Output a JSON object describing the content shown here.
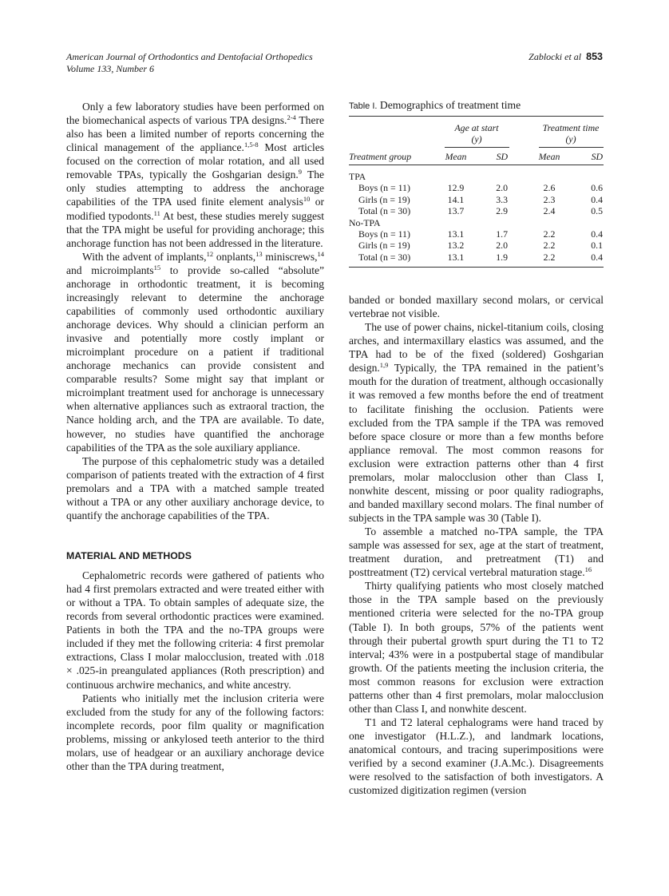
{
  "header": {
    "journal": "American Journal of Orthodontics and Dentofacial Orthopedics",
    "volume": "Volume 133, Number 6",
    "authors": "Zablocki et al",
    "page_number": "853"
  },
  "table": {
    "label": "Table I.",
    "title": "Demographics of treatment time",
    "group_headers": [
      {
        "line1": "Age at start",
        "line2": "(y)"
      },
      {
        "line1": "Treatment time",
        "line2": "(y)"
      }
    ],
    "columns": [
      "Treatment group",
      "Mean",
      "SD",
      "Mean",
      "SD"
    ],
    "rows": [
      {
        "group": "TPA",
        "cells": []
      },
      {
        "label": "Boys (n = 11)",
        "cells": [
          "12.9",
          "2.0",
          "2.6",
          "0.6"
        ]
      },
      {
        "label": "Girls (n = 19)",
        "cells": [
          "14.1",
          "3.3",
          "2.3",
          "0.4"
        ]
      },
      {
        "label": "Total (n = 30)",
        "cells": [
          "13.7",
          "2.9",
          "2.4",
          "0.5"
        ]
      },
      {
        "group": "No-TPA",
        "cells": []
      },
      {
        "label": "Boys (n = 11)",
        "cells": [
          "13.1",
          "1.7",
          "2.2",
          "0.4"
        ]
      },
      {
        "label": "Girls (n = 19)",
        "cells": [
          "13.2",
          "2.0",
          "2.2",
          "0.1"
        ]
      },
      {
        "label": "Total (n = 30)",
        "cells": [
          "13.1",
          "1.9",
          "2.2",
          "0.4"
        ]
      }
    ]
  },
  "left_column": [
    {
      "type": "p",
      "segments": [
        {
          "t": "Only a few laboratory studies have been performed on the biomechanical aspects of various TPA designs."
        },
        {
          "sup": "2-4"
        },
        {
          "t": " There also has been a limited number of reports concerning the clinical management of the appliance."
        },
        {
          "sup": "1,5-8"
        },
        {
          "t": " Most articles focused on the correction of molar rotation, and all used removable TPAs, typically the Goshgarian design."
        },
        {
          "sup": "9"
        },
        {
          "t": " The only studies attempting to address the anchorage capabilities of the TPA used finite element analysis"
        },
        {
          "sup": "10"
        },
        {
          "t": " or modified typodonts."
        },
        {
          "sup": "11"
        },
        {
          "t": " At best, these studies merely suggest that the TPA might be useful for providing anchorage; this anchorage function has not been addressed in the literature."
        }
      ]
    },
    {
      "type": "p",
      "segments": [
        {
          "t": "With the advent of implants,"
        },
        {
          "sup": "12"
        },
        {
          "t": " onplants,"
        },
        {
          "sup": "13"
        },
        {
          "t": " miniscrews,"
        },
        {
          "sup": "14"
        },
        {
          "t": " and microimplants"
        },
        {
          "sup": "15"
        },
        {
          "t": " to provide so-called “absolute” anchorage in orthodontic treatment, it is becoming increasingly relevant to determine the anchorage capabilities of commonly used orthodontic auxiliary anchorage devices. Why should a clinician perform an invasive and potentially more costly implant or microimplant procedure on a patient if traditional anchorage mechanics can provide consistent and comparable results? Some might say that implant or microimplant treatment used for anchorage is unnecessary when alternative appliances such as extraoral traction, the Nance holding arch, and the TPA are available. To date, however, no studies have quantified the anchorage capabilities of the TPA as the sole auxiliary appliance."
        }
      ]
    },
    {
      "type": "p",
      "segments": [
        {
          "t": "The purpose of this cephalometric study was a detailed comparison of patients treated with the extraction of 4 first premolars and a TPA with a matched sample treated without a TPA or any other auxiliary anchorage device, to quantify the anchorage capabilities of the TPA."
        }
      ]
    },
    {
      "type": "heading",
      "segments": [
        {
          "t": "MATERIAL AND METHODS"
        }
      ]
    },
    {
      "type": "p",
      "segments": [
        {
          "t": "Cephalometric records were gathered of patients who had 4 first premolars extracted and were treated either with or without a TPA. To obtain samples of adequate size, the records from several orthodontic practices were examined. Patients in both the TPA and the no-TPA groups were included if they met the following criteria: 4 first premolar extractions, Class I molar malocclusion, treated with .018 × .025-in preangulated appliances (Roth prescription) and continuous archwire mechanics, and white ancestry."
        }
      ]
    },
    {
      "type": "p",
      "segments": [
        {
          "t": "Patients who initially met the inclusion criteria were excluded from the study for any of the following factors: incomplete records, poor film quality or magnification problems, missing or ankylosed teeth anterior to the third molars, use of headgear or an auxiliary anchorage device other than the TPA during treatment,"
        }
      ]
    }
  ],
  "right_column": [
    {
      "type": "p-cont",
      "segments": [
        {
          "t": "banded or bonded maxillary second molars, or cervical vertebrae not visible."
        }
      ]
    },
    {
      "type": "p",
      "segments": [
        {
          "t": "The use of power chains, nickel-titanium coils, closing arches, and intermaxillary elastics was assumed, and the TPA had to be of the fixed (soldered) Goshgarian design."
        },
        {
          "sup": "1,9"
        },
        {
          "t": " Typically, the TPA remained in the patient’s mouth for the duration of treatment, although occasionally it was removed a few months before the end of treatment to facilitate finishing the occlusion. Patients were excluded from the TPA sample if the TPA was removed before space closure or more than a few months before appliance removal. The most common reasons for exclusion were extraction patterns other than 4 first premolars, molar malocclusion other than Class I, nonwhite descent, missing or poor quality radiographs, and banded maxillary second molars. The final number of subjects in the TPA sample was 30 (Table I)."
        }
      ]
    },
    {
      "type": "p",
      "segments": [
        {
          "t": "To assemble a matched no-TPA sample, the TPA sample was assessed for sex, age at the start of treatment, treatment duration, and pretreatment (T1) and posttreatment (T2) cervical vertebral maturation stage."
        },
        {
          "sup": "16"
        }
      ]
    },
    {
      "type": "p",
      "segments": [
        {
          "t": "Thirty qualifying patients who most closely matched those in the TPA sample based on the previously mentioned criteria were selected for the no-TPA group (Table I). In both groups, 57% of the patients went through their pubertal growth spurt during the T1 to T2 interval; 43% were in a postpubertal stage of mandibular growth. Of the patients meeting the inclusion criteria, the most common reasons for exclusion were extraction patterns other than 4 first premolars, molar malocclusion other than Class I, and nonwhite descent."
        }
      ]
    },
    {
      "type": "p",
      "segments": [
        {
          "t": "T1 and T2 lateral cephalograms were hand traced by one investigator (H.L.Z.), and landmark locations, anatomical contours, and tracing superimpositions were verified by a second examiner (J.A.Mc.). Disagreements were resolved to the satisfaction of both investigators. A customized digitization regimen (version"
        }
      ]
    }
  ]
}
